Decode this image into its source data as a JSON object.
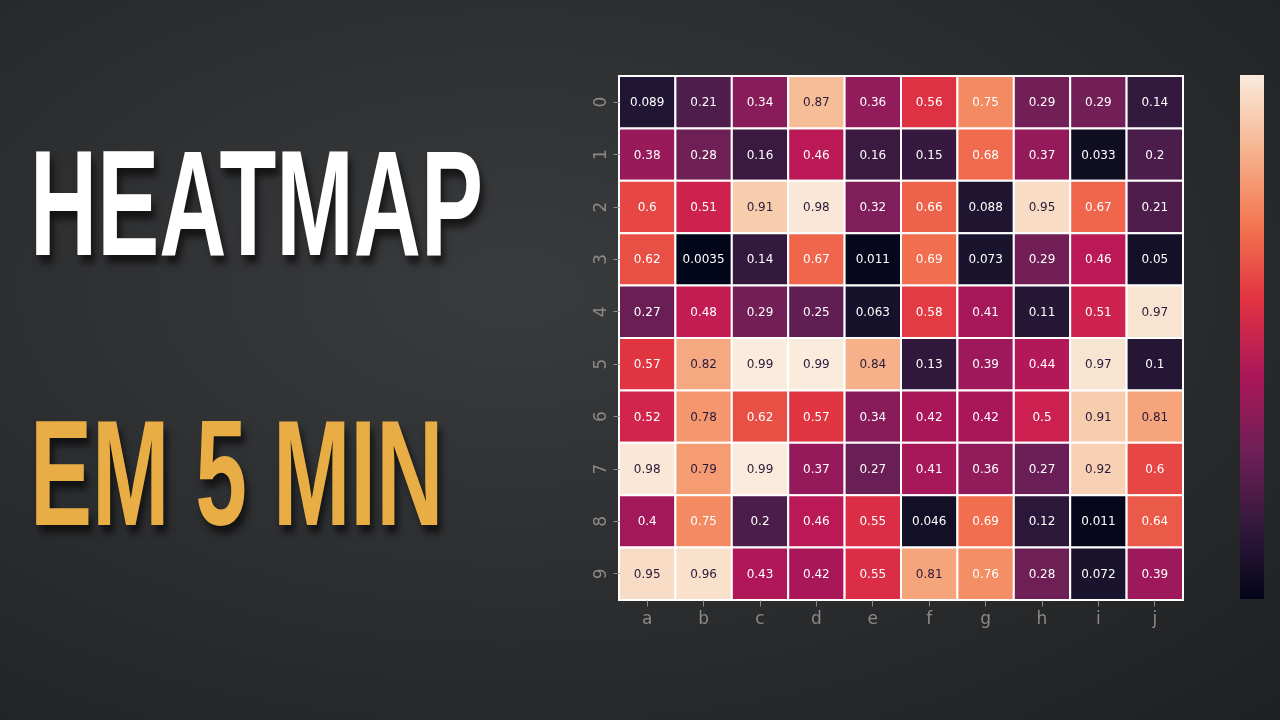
{
  "chart_data": {
    "type": "heatmap",
    "title": "HEATMAP",
    "subtitle": "EM 5 MIN",
    "categories": [
      "a",
      "b",
      "c",
      "d",
      "e",
      "f",
      "g",
      "h",
      "i",
      "j"
    ],
    "y_categories": [
      "0",
      "1",
      "2",
      "3",
      "4",
      "5",
      "6",
      "7",
      "8",
      "9"
    ],
    "cells": [
      [
        0.089,
        0.21,
        0.34,
        0.87,
        0.36,
        0.56,
        0.75,
        0.29,
        0.29,
        0.14
      ],
      [
        0.38,
        0.28,
        0.16,
        0.46,
        0.16,
        0.15,
        0.68,
        0.37,
        0.033,
        0.2
      ],
      [
        0.6,
        0.51,
        0.91,
        0.98,
        0.32,
        0.66,
        0.088,
        0.95,
        0.67,
        0.21
      ],
      [
        0.62,
        0.0035,
        0.14,
        0.67,
        0.011,
        0.69,
        0.073,
        0.29,
        0.46,
        0.05
      ],
      [
        0.27,
        0.48,
        0.29,
        0.25,
        0.063,
        0.58,
        0.41,
        0.11,
        0.51,
        0.97
      ],
      [
        0.57,
        0.82,
        0.99,
        0.99,
        0.84,
        0.13,
        0.39,
        0.44,
        0.97,
        0.1
      ],
      [
        0.52,
        0.78,
        0.62,
        0.57,
        0.34,
        0.42,
        0.42,
        0.5,
        0.91,
        0.81
      ],
      [
        0.98,
        0.79,
        0.99,
        0.37,
        0.27,
        0.41,
        0.36,
        0.27,
        0.92,
        0.6
      ],
      [
        0.4,
        0.75,
        0.2,
        0.46,
        0.55,
        0.046,
        0.69,
        0.12,
        0.011,
        0.64
      ],
      [
        0.95,
        0.96,
        0.43,
        0.42,
        0.55,
        0.81,
        0.76,
        0.28,
        0.072,
        0.39
      ]
    ],
    "data_labels": true
  }
}
